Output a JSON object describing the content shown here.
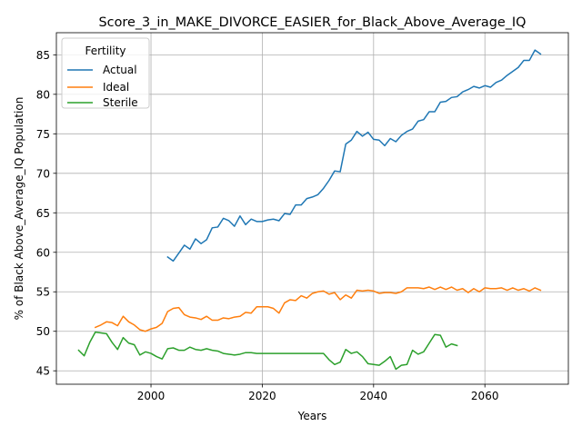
{
  "chart_data": {
    "type": "line",
    "title": "Score_3_in_MAKE_DIVORCE_EASIER_for_Black_Above_Average_IQ",
    "xlabel": "Years",
    "ylabel": "% of Black Above_Average_IQ Population",
    "xlim": [
      1983,
      2075
    ],
    "ylim": [
      43.3,
      87.8
    ],
    "xticks": [
      2000,
      2020,
      2040,
      2060
    ],
    "yticks": [
      45,
      50,
      55,
      60,
      65,
      70,
      75,
      80,
      85
    ],
    "grid": true,
    "legend": {
      "title": "Fertility",
      "position": "top-left"
    },
    "series": [
      {
        "name": "Actual",
        "color": "#1f77b4",
        "x": [
          2003,
          2004,
          2005,
          2006,
          2007,
          2008,
          2009,
          2010,
          2011,
          2012,
          2013,
          2014,
          2015,
          2016,
          2017,
          2018,
          2019,
          2020,
          2021,
          2022,
          2023,
          2024,
          2025,
          2026,
          2027,
          2028,
          2029,
          2030,
          2031,
          2032,
          2033,
          2034,
          2035,
          2036,
          2037,
          2038,
          2039,
          2040,
          2041,
          2042,
          2043,
          2044,
          2045,
          2046,
          2047,
          2048,
          2049,
          2050,
          2051,
          2052,
          2053,
          2054,
          2055,
          2056,
          2057,
          2058,
          2059,
          2060,
          2061,
          2062,
          2063,
          2064,
          2065,
          2066,
          2067,
          2068,
          2069,
          2070
        ],
        "y": [
          59.4,
          58.9,
          59.9,
          60.9,
          60.4,
          61.7,
          61.1,
          61.6,
          63.1,
          63.2,
          64.3,
          64.0,
          63.3,
          64.6,
          63.5,
          64.2,
          63.9,
          63.9,
          64.1,
          64.2,
          64.0,
          64.9,
          64.8,
          66.0,
          66.0,
          66.8,
          67.0,
          67.3,
          68.1,
          69.1,
          70.3,
          70.2,
          73.7,
          74.2,
          75.3,
          74.7,
          75.2,
          74.3,
          74.2,
          73.5,
          74.4,
          74.0,
          74.8,
          75.3,
          75.6,
          76.6,
          76.8,
          77.8,
          77.8,
          79.0,
          79.1,
          79.6,
          79.7,
          80.3,
          80.6,
          81.0,
          80.8,
          81.1,
          80.9,
          81.5,
          81.8,
          82.4,
          82.9,
          83.4,
          84.3,
          84.3,
          85.6,
          85.1
        ]
      },
      {
        "name": "Ideal",
        "color": "#ff7f0e",
        "x": [
          1990,
          1991,
          1992,
          1993,
          1994,
          1995,
          1996,
          1997,
          1998,
          1999,
          2000,
          2001,
          2002,
          2003,
          2004,
          2005,
          2006,
          2007,
          2008,
          2009,
          2010,
          2011,
          2012,
          2013,
          2014,
          2015,
          2016,
          2017,
          2018,
          2019,
          2020,
          2021,
          2022,
          2023,
          2024,
          2025,
          2026,
          2027,
          2028,
          2029,
          2030,
          2031,
          2032,
          2033,
          2034,
          2035,
          2036,
          2037,
          2038,
          2039,
          2040,
          2041,
          2042,
          2043,
          2044,
          2045,
          2046,
          2047,
          2048,
          2049,
          2050,
          2051,
          2052,
          2053,
          2054,
          2055,
          2056,
          2057,
          2058,
          2059,
          2060,
          2061,
          2062,
          2063,
          2064,
          2065,
          2066,
          2067,
          2068,
          2069,
          2070
        ],
        "y": [
          50.5,
          50.8,
          51.2,
          51.1,
          50.7,
          51.9,
          51.2,
          50.8,
          50.2,
          50.0,
          50.3,
          50.5,
          51.0,
          52.5,
          52.9,
          53.0,
          52.1,
          51.8,
          51.7,
          51.5,
          51.9,
          51.4,
          51.4,
          51.7,
          51.6,
          51.8,
          51.9,
          52.4,
          52.3,
          53.1,
          53.1,
          53.1,
          52.9,
          52.3,
          53.6,
          54.0,
          53.9,
          54.5,
          54.2,
          54.8,
          55.0,
          55.1,
          54.7,
          54.9,
          54.0,
          54.6,
          54.2,
          55.2,
          55.1,
          55.2,
          55.1,
          54.8,
          54.9,
          54.9,
          54.8,
          55.0,
          55.5,
          55.5,
          55.5,
          55.4,
          55.6,
          55.3,
          55.6,
          55.3,
          55.6,
          55.2,
          55.4,
          54.9,
          55.4,
          55.0,
          55.5,
          55.4,
          55.4,
          55.5,
          55.2,
          55.5,
          55.2,
          55.4,
          55.1,
          55.5,
          55.2
        ]
      },
      {
        "name": "Sterile",
        "color": "#2ca02c",
        "x": [
          1987,
          1988,
          1989,
          1990,
          1991,
          1992,
          1993,
          1994,
          1995,
          1996,
          1997,
          1998,
          1999,
          2000,
          2001,
          2002,
          2003,
          2004,
          2005,
          2006,
          2007,
          2008,
          2009,
          2010,
          2011,
          2012,
          2013,
          2014,
          2015,
          2016,
          2017,
          2018,
          2019,
          2020,
          2021,
          2022,
          2023,
          2024,
          2025,
          2026,
          2027,
          2028,
          2029,
          2030,
          2031,
          2032,
          2033,
          2034,
          2035,
          2036,
          2037,
          2038,
          2039,
          2040,
          2041,
          2042,
          2043,
          2044,
          2045,
          2046,
          2047,
          2048,
          2049,
          2050,
          2051,
          2052,
          2053,
          2054,
          2055
        ],
        "y": [
          47.6,
          46.9,
          48.6,
          49.9,
          49.8,
          49.7,
          48.6,
          47.7,
          49.2,
          48.5,
          48.3,
          47.0,
          47.4,
          47.2,
          46.8,
          46.5,
          47.8,
          47.9,
          47.6,
          47.6,
          48.0,
          47.7,
          47.6,
          47.8,
          47.6,
          47.5,
          47.2,
          47.1,
          47.0,
          47.1,
          47.3,
          47.3,
          47.2,
          47.2,
          47.2,
          47.2,
          47.2,
          47.2,
          47.2,
          47.2,
          47.2,
          47.2,
          47.2,
          47.2,
          47.2,
          46.4,
          45.8,
          46.1,
          47.7,
          47.2,
          47.4,
          46.8,
          45.9,
          45.8,
          45.7,
          46.2,
          46.8,
          45.2,
          45.7,
          45.8,
          47.6,
          47.1,
          47.4,
          48.5,
          49.6,
          49.5,
          48.0,
          48.4,
          48.2
        ]
      }
    ]
  }
}
